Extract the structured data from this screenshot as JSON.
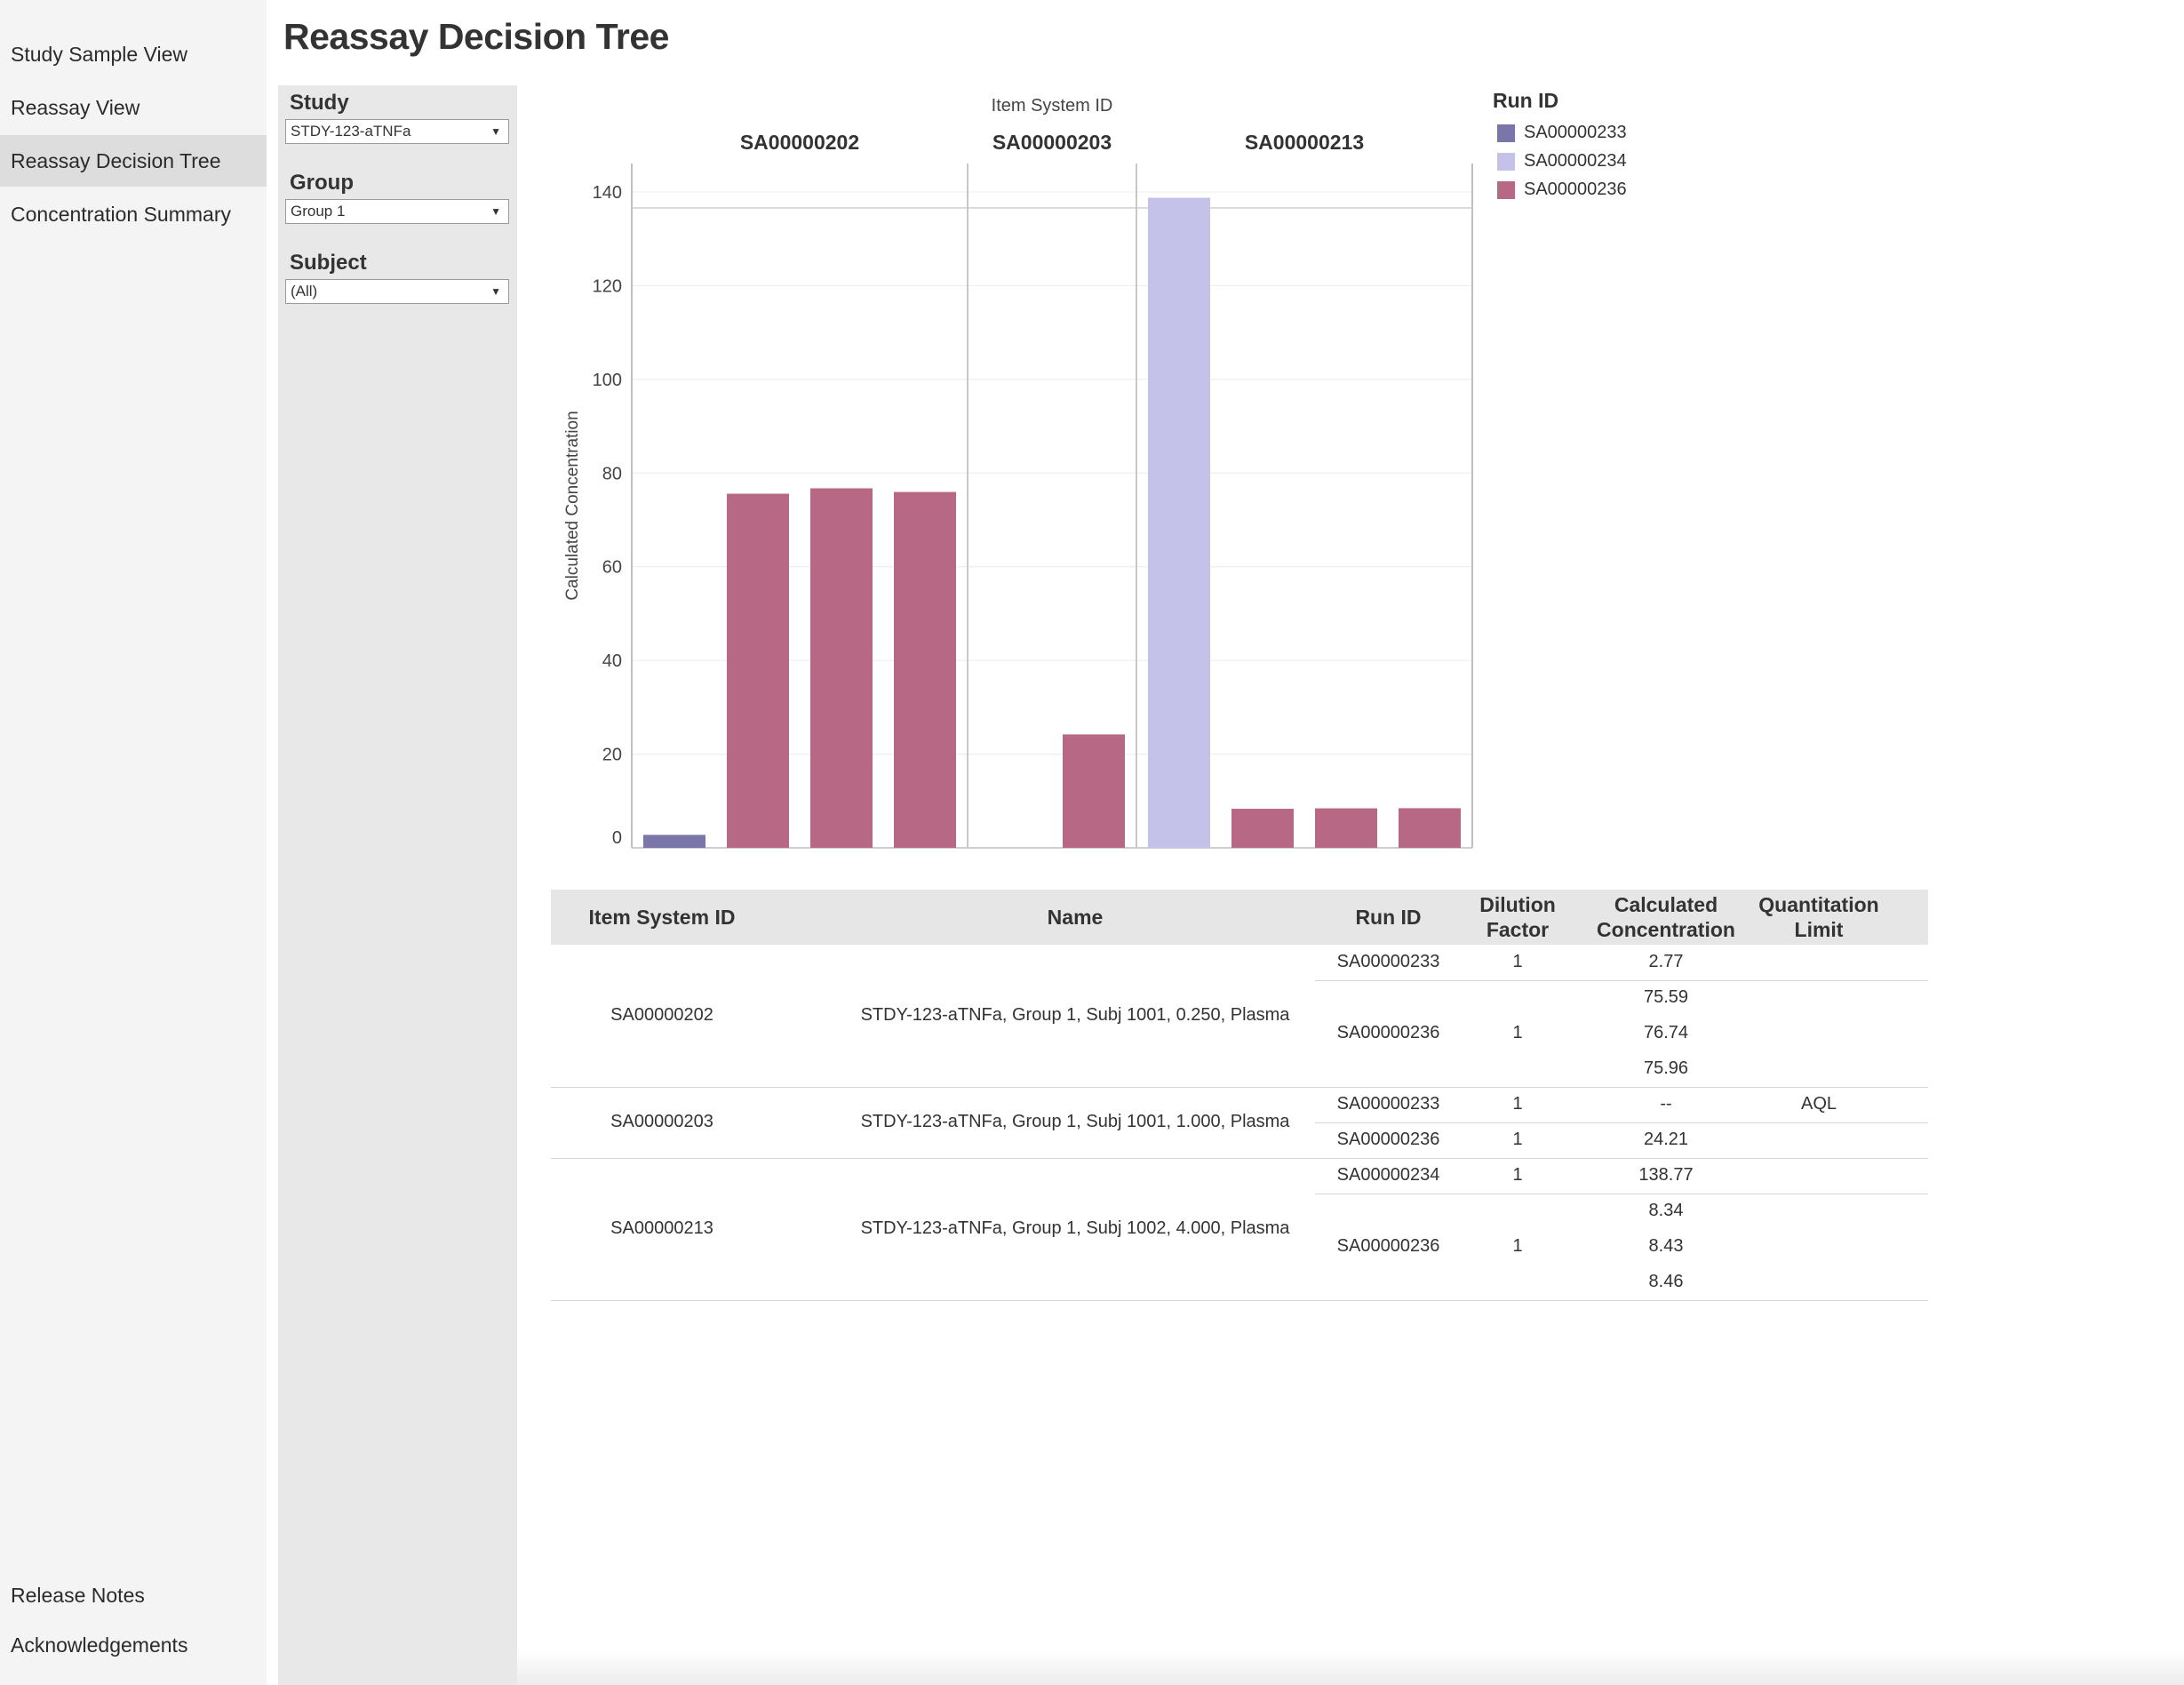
{
  "nav": {
    "items": [
      {
        "label": "Study Sample View"
      },
      {
        "label": "Reassay View"
      },
      {
        "label": "Reassay Decision Tree"
      },
      {
        "label": "Concentration Summary"
      }
    ],
    "footer": [
      {
        "label": "Release Notes"
      },
      {
        "label": "Acknowledgements"
      }
    ]
  },
  "page": {
    "title": "Reassay Decision Tree"
  },
  "filters": {
    "study": {
      "label": "Study",
      "value": "STDY-123-aTNFa"
    },
    "group": {
      "label": "Group",
      "value": "Group 1"
    },
    "subject": {
      "label": "Subject",
      "value": "(All)"
    }
  },
  "chart_data": {
    "type": "bar",
    "title": "Item System ID",
    "ylabel": "Calculated Concentration",
    "ylim": [
      0,
      155
    ],
    "yticks": [
      0,
      20,
      40,
      60,
      80,
      100,
      120,
      140
    ],
    "grid": true,
    "legend_title": "Run ID",
    "legend_position": "right",
    "series": [
      {
        "name": "SA00000233",
        "color": "#7b76a9"
      },
      {
        "name": "SA00000234",
        "color": "#c5c2ea"
      },
      {
        "name": "SA00000236",
        "color": "#b76884"
      }
    ],
    "panels": [
      {
        "label": "SA00000202",
        "bars": [
          {
            "run": "SA00000233",
            "value": 2.77
          },
          {
            "run": "SA00000236",
            "value": 75.59
          },
          {
            "run": "SA00000236",
            "value": 76.74
          },
          {
            "run": "SA00000236",
            "value": 75.96
          }
        ]
      },
      {
        "label": "SA00000203",
        "bars": [
          {
            "run": "SA00000233",
            "value": 0
          },
          {
            "run": "SA00000236",
            "value": 24.21
          }
        ]
      },
      {
        "label": "SA00000213",
        "bars": [
          {
            "run": "SA00000234",
            "value": 138.77
          },
          {
            "run": "SA00000236",
            "value": 8.34
          },
          {
            "run": "SA00000236",
            "value": 8.43
          },
          {
            "run": "SA00000236",
            "value": 8.46
          }
        ]
      }
    ]
  },
  "table": {
    "headers": {
      "item": "Item System ID",
      "name": "Name",
      "run": "Run ID",
      "dilution": "Dilution Factor",
      "conc": "Calculated Concentration",
      "limit": "Quantitation Limit"
    },
    "groups": [
      {
        "item": "SA00000202",
        "name": "STDY-123-aTNFa, Group 1, Subj 1001, 0.250, Plasma",
        "runs": [
          {
            "run": "SA00000233",
            "dilution": "1",
            "values": [
              "2.77"
            ],
            "limit": ""
          },
          {
            "run": "SA00000236",
            "dilution": "1",
            "values": [
              "75.59",
              "76.74",
              "75.96"
            ],
            "limit": ""
          }
        ]
      },
      {
        "item": "SA00000203",
        "name": "STDY-123-aTNFa, Group 1, Subj 1001, 1.000, Plasma",
        "runs": [
          {
            "run": "SA00000233",
            "dilution": "1",
            "values": [
              "--"
            ],
            "limit": "AQL"
          },
          {
            "run": "SA00000236",
            "dilution": "1",
            "values": [
              "24.21"
            ],
            "limit": ""
          }
        ]
      },
      {
        "item": "SA00000213",
        "name": "STDY-123-aTNFa, Group 1, Subj 1002, 4.000, Plasma",
        "runs": [
          {
            "run": "SA00000234",
            "dilution": "1",
            "values": [
              "138.77"
            ],
            "limit": ""
          },
          {
            "run": "SA00000236",
            "dilution": "1",
            "values": [
              "8.34",
              "8.43",
              "8.46"
            ],
            "limit": ""
          }
        ]
      }
    ]
  }
}
